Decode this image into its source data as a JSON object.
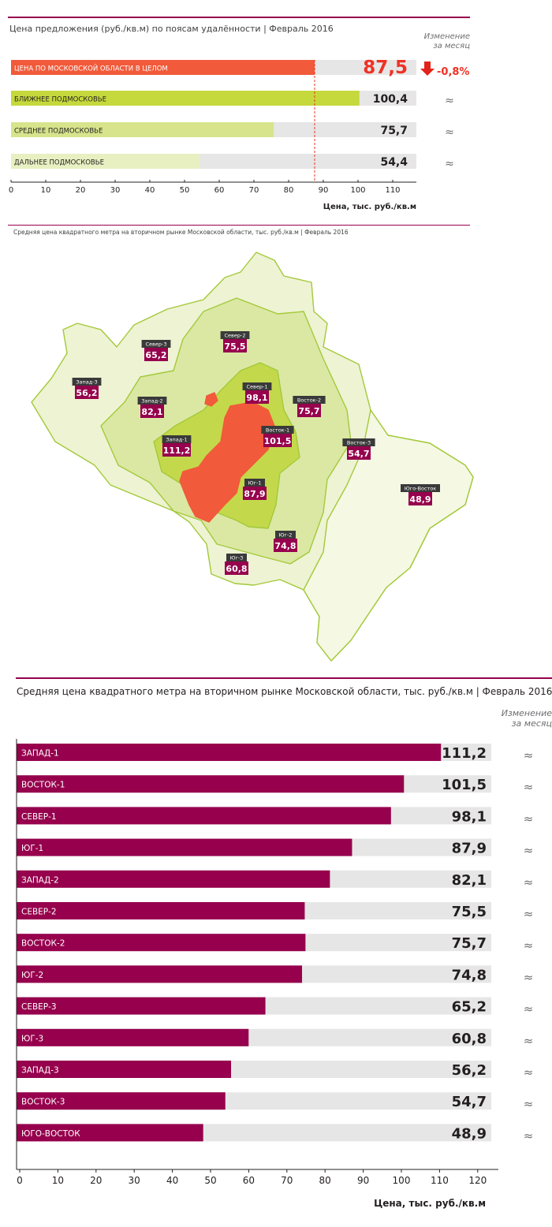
{
  "colors": {
    "accent": "#96004d",
    "red": "#ee3124",
    "down": "#e2231a",
    "bg_bar": "#e6e6e6"
  },
  "section1": {
    "title": "Цена предложения (руб./кв.м) по поясам удалённости | Февраль 2016",
    "change_header": [
      "Изменение",
      "за месяц"
    ],
    "xlabel": "Цена, тыс. руб./кв.м",
    "change_value": "-0,8%",
    "change_icon": "down-arrow-icon"
  },
  "section2": {
    "title": "Средняя цена квадратного метра на вторичном рынке Московской области, тыс. руб./кв.м | Февраль 2016",
    "regions": [
      {
        "name": "Север-3",
        "value": "65,2"
      },
      {
        "name": "Север-2",
        "value": "75,5"
      },
      {
        "name": "Запад-3",
        "value": "56,2"
      },
      {
        "name": "Север-1",
        "value": "98,1"
      },
      {
        "name": "Запад-2",
        "value": "82,1"
      },
      {
        "name": "Восток-2",
        "value": "75,7"
      },
      {
        "name": "Восток-1",
        "value": "101,5"
      },
      {
        "name": "Запад-1",
        "value": "111,2"
      },
      {
        "name": "Восток-3",
        "value": "54,7"
      },
      {
        "name": "Юг-1",
        "value": "87,9"
      },
      {
        "name": "Юго-Восток",
        "value": "48,9"
      },
      {
        "name": "Юг-2",
        "value": "74,8"
      },
      {
        "name": "Юг-3",
        "value": "60,8"
      }
    ]
  },
  "section3": {
    "title": "Средняя цена квадратного метра на вторичном рынке Московской области, тыс. руб./кв.м | Февраль 2016",
    "change_header": [
      "Изменение",
      "за месяц"
    ],
    "xlabel": "Цена, тыс. руб./кв.м"
  },
  "chart_data": [
    {
      "type": "bar",
      "orientation": "horizontal",
      "categories": [
        "ЦЕНА ПО МОСКОВСКОЙ ОБЛАСТИ В ЦЕЛОМ",
        "БЛИЖНЕЕ ПОДМОСКОВЬЕ",
        "СРЕДНЕЕ ПОДМОСКОВЬЕ",
        "ДАЛЬНЕЕ ПОДМОСКОВЬЕ"
      ],
      "values": [
        87.5,
        100.4,
        75.7,
        54.4
      ],
      "value_labels": [
        "87,5",
        "100,4",
        "75,7",
        "54,4"
      ],
      "changes": [
        "-0,8%",
        "≈",
        "≈",
        "≈"
      ],
      "bar_colors": [
        "#f15a3a",
        "#c5d93c",
        "#d7e48c",
        "#e8f0c2"
      ],
      "xticks": [
        0,
        10,
        20,
        30,
        40,
        50,
        60,
        70,
        80,
        90,
        100,
        110
      ],
      "xlim": [
        0,
        117
      ],
      "reference_line": 87.5,
      "xlabel": "Цена, тыс. руб./кв.м",
      "ylabel": "",
      "title": "Цена предложения (руб./кв.м) по поясам удалённости | Февраль 2016"
    },
    {
      "type": "bar",
      "orientation": "horizontal",
      "categories": [
        "ЗАПАД-1",
        "ВОСТОК-1",
        "СЕВЕР-1",
        "ЮГ-1",
        "ЗАПАД-2",
        "СЕВЕР-2",
        "ВОСТОК-2",
        "ЮГ-2",
        "СЕВЕР-3",
        "ЮГ-3",
        "ЗАПАД-3",
        "ВОСТОК-3",
        "ЮГО-ВОСТОК"
      ],
      "values": [
        111.2,
        101.5,
        98.1,
        87.9,
        82.1,
        75.5,
        75.7,
        74.8,
        65.2,
        60.8,
        56.2,
        54.7,
        48.9
      ],
      "value_labels": [
        "111,2",
        "101,5",
        "98,1",
        "87,9",
        "82,1",
        "75,5",
        "75,7",
        "74,8",
        "65,2",
        "60,8",
        "56,2",
        "54,7",
        "48,9"
      ],
      "changes": [
        "≈",
        "≈",
        "≈",
        "≈",
        "≈",
        "≈",
        "≈",
        "≈",
        "≈",
        "≈",
        "≈",
        "≈",
        "≈"
      ],
      "xticks": [
        0,
        10,
        20,
        30,
        40,
        50,
        60,
        70,
        80,
        90,
        100,
        110,
        120
      ],
      "xlim": [
        0,
        126
      ],
      "xlabel": "Цена, тыс. руб./кв.м",
      "ylabel": "",
      "title": "Средняя цена квадратного метра на вторичном рынке Московской области, тыс. руб./кв.м | Февраль 2016"
    }
  ]
}
